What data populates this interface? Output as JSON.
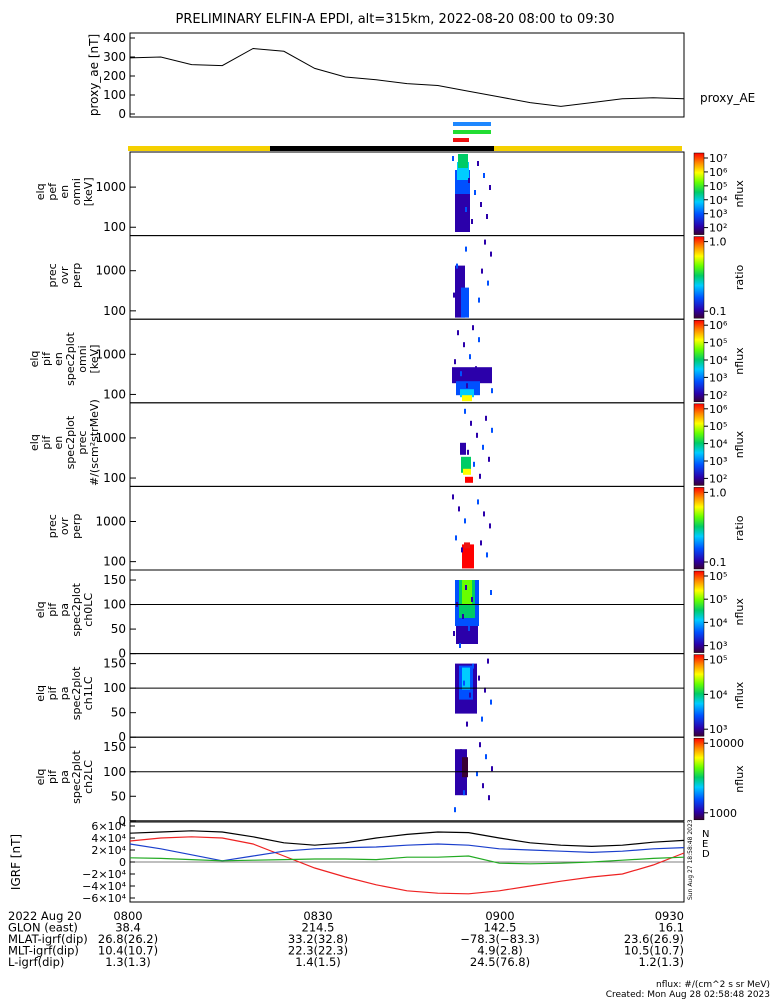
{
  "title": "PRELIMINARY ELFIN-A EPDI, alt=315km, 2022-08-20 08:00 to 09:30",
  "colors": {
    "science_zone": "#f5d000",
    "night": "#000000",
    "bar_blue": "#1e88ff",
    "bar_green": "#22dd33",
    "bar_red": "#ee1111"
  },
  "panels": [
    {
      "ylabel": [
        "elq",
        "pef",
        "en",
        "omni",
        "[keV]"
      ],
      "ticks": [
        "1000",
        "100"
      ],
      "colorbar": {
        "label": "nflux",
        "ticks": [
          "10⁷",
          "10⁶",
          "10⁵",
          "10⁴",
          "10³",
          "10²"
        ]
      }
    },
    {
      "ylabel": [
        "prec",
        "ovr",
        "perp"
      ],
      "ticks": [
        "1000",
        "100"
      ],
      "colorbar": {
        "label": "ratio",
        "ticks": [
          "1.0",
          "0.1"
        ]
      }
    },
    {
      "ylabel": [
        "elq",
        "pif",
        "en",
        "spec2plot",
        "omni",
        "[keV]"
      ],
      "ticks": [
        "1000",
        "100"
      ],
      "colorbar": {
        "label": "nflux",
        "ticks": [
          "10⁶",
          "10⁵",
          "10⁴",
          "10³",
          "10²"
        ]
      }
    },
    {
      "ylabel": [
        "elq",
        "pif",
        "en",
        "spec2plot",
        "prec",
        "#/(scm²strMeV)"
      ],
      "ticks": [
        "1000",
        "100"
      ],
      "colorbar": {
        "label": "nflux",
        "ticks": [
          "10⁶",
          "10⁵",
          "10⁴",
          "10³",
          "10²"
        ]
      }
    },
    {
      "ylabel": [
        "prec",
        "ovr",
        "perp"
      ],
      "ticks": [
        "1000",
        "100"
      ],
      "colorbar": {
        "label": "ratio",
        "ticks": [
          "1.0",
          "0.1"
        ]
      }
    },
    {
      "ylabel": [
        "elq",
        "pif",
        "pa",
        "spec2plot",
        "ch0LC"
      ],
      "ticks": [
        "150",
        "100",
        "50",
        "0"
      ],
      "colorbar": {
        "label": "nflux",
        "ticks": [
          "10⁵",
          "10⁵",
          "10⁴",
          "10³"
        ]
      }
    },
    {
      "ylabel": [
        "elq",
        "pif",
        "pa",
        "spec2plot",
        "ch1LC"
      ],
      "ticks": [
        "150",
        "100",
        "50",
        "0"
      ],
      "colorbar": {
        "label": "nflux",
        "ticks": [
          "10⁵",
          "10⁴",
          "10³"
        ]
      }
    },
    {
      "ylabel": [
        "elq",
        "pif",
        "pa",
        "spec2plot",
        "ch2LC"
      ],
      "ticks": [
        "150",
        "100",
        "50",
        "0"
      ],
      "colorbar": {
        "label": "nflux",
        "ticks": [
          "10000",
          "1000"
        ]
      }
    }
  ],
  "chart_data": [
    {
      "type": "line",
      "ylabel": "proxy_ae [nT]",
      "legend": "proxy_AE",
      "ylim": [
        0,
        400
      ],
      "yticks": [
        "400",
        "300",
        "200",
        "100",
        "0"
      ],
      "x": [
        "08:00",
        "08:05",
        "08:10",
        "08:15",
        "08:20",
        "08:25",
        "08:30",
        "08:35",
        "08:40",
        "08:45",
        "08:50",
        "08:55",
        "09:00",
        "09:05",
        "09:10",
        "09:15",
        "09:20",
        "09:25",
        "09:30"
      ],
      "series": [
        {
          "values": [
            295,
            300,
            260,
            255,
            345,
            330,
            240,
            195,
            180,
            160,
            150,
            120,
            90,
            60,
            40,
            60,
            80,
            85,
            80
          ]
        }
      ]
    },
    {
      "type": "line",
      "ylabel": "IGRF [nT]",
      "ylim": [
        -60000,
        60000
      ],
      "yticks": [
        "6×10⁴",
        "4×10⁴",
        "2×10⁴",
        "0",
        "−2×10⁴",
        "−4×10⁴",
        "−6×10⁴"
      ],
      "legend": [
        "N",
        "E",
        "D"
      ],
      "x": [
        "08:00",
        "08:05",
        "08:10",
        "08:15",
        "08:20",
        "08:25",
        "08:30",
        "08:35",
        "08:40",
        "08:45",
        "08:50",
        "08:55",
        "09:00",
        "09:05",
        "09:10",
        "09:15",
        "09:20",
        "09:25",
        "09:30"
      ],
      "series": [
        {
          "name": "N",
          "color": "#ee2222",
          "values": [
            35000,
            40000,
            42000,
            40000,
            30000,
            10000,
            -10000,
            -25000,
            -38000,
            -48000,
            -52000,
            -53000,
            -48000,
            -40000,
            -32000,
            -25000,
            -20000,
            -5000,
            15000
          ]
        },
        {
          "name": "D",
          "color": "#1b3fcc",
          "values": [
            30000,
            22000,
            12000,
            2000,
            10000,
            18000,
            22000,
            24000,
            25000,
            28000,
            30000,
            28000,
            22000,
            20000,
            18000,
            16000,
            18000,
            22000,
            24000
          ]
        },
        {
          "name": "E",
          "color": "#22aa22",
          "values": [
            7000,
            6000,
            4000,
            2000,
            3000,
            4000,
            5000,
            5000,
            4000,
            8000,
            8000,
            10000,
            -2000,
            -3000,
            -2000,
            0,
            3000,
            6000,
            8000
          ]
        },
        {
          "color": "#000000",
          "values": [
            48000,
            50000,
            52000,
            50000,
            42000,
            32000,
            28000,
            32000,
            40000,
            46000,
            50000,
            49000,
            40000,
            32000,
            28000,
            26000,
            28000,
            33000,
            36000
          ]
        }
      ]
    }
  ],
  "footer": {
    "rows": [
      [
        "2022 Aug 20",
        "0800",
        "0830",
        "0900",
        "0930"
      ],
      [
        "GLON (east)",
        "38.4",
        "214.5",
        "142.5",
        "16.1"
      ],
      [
        "MLAT-igrf(dip)",
        "26.8(26.2)",
        "33.2(32.8)",
        "−78.3(−83.3)",
        "23.6(26.9)"
      ],
      [
        "MLT-igrf(dip)",
        "10.4(10.7)",
        "22.3(22.3)",
        "4.9(2.8)",
        "10.5(10.7)"
      ],
      [
        "L-igrf(dip)",
        "1.3(1.3)",
        "1.4(1.5)",
        "24.5(76.8)",
        "1.2(1.3)"
      ]
    ],
    "units_note": "nflux: #/(cm^2 s sr MeV)",
    "created": "Created: Mon Aug 28 02:58:48 2023",
    "side_stamp": "Sun Aug 27 18:58:48 2023"
  }
}
